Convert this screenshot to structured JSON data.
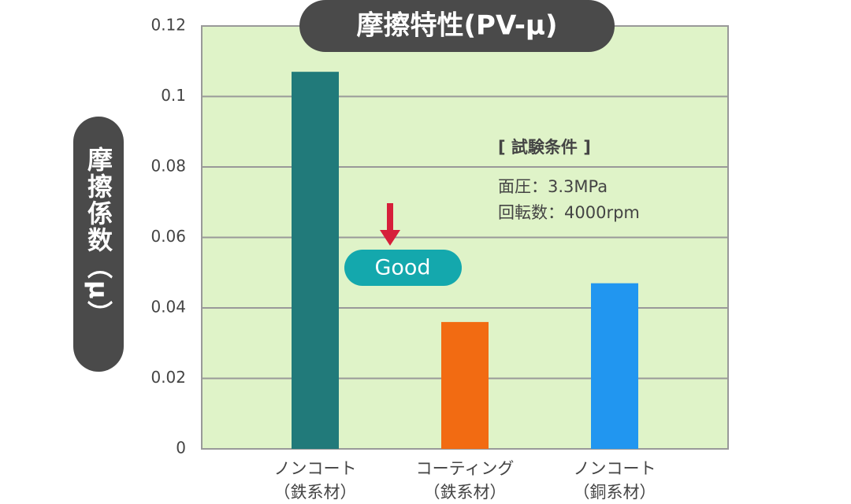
{
  "chart_data": {
    "type": "bar",
    "title": "摩擦特性(PV-μ)",
    "y_label": "摩擦係数（μ）",
    "categories": [
      [
        "ノンコート",
        "（鉄系材）"
      ],
      [
        "コーティング",
        "（鉄系材）"
      ],
      [
        "ノンコート",
        "（銅系材）"
      ]
    ],
    "values": [
      0.107,
      0.036,
      0.047
    ],
    "colors": [
      "#217a7a",
      "#f26b12",
      "#2196f0"
    ],
    "ylim": [
      0,
      0.12
    ],
    "yticks": [
      0,
      0.02,
      0.04,
      0.06,
      0.08,
      0.1,
      0.12
    ],
    "grid": true,
    "annotations": {
      "conditions_title": "[ 試験条件 ]",
      "pressure": "面圧：3.3MPa",
      "speed": "回転数：4000rpm",
      "badge": "Good"
    }
  }
}
